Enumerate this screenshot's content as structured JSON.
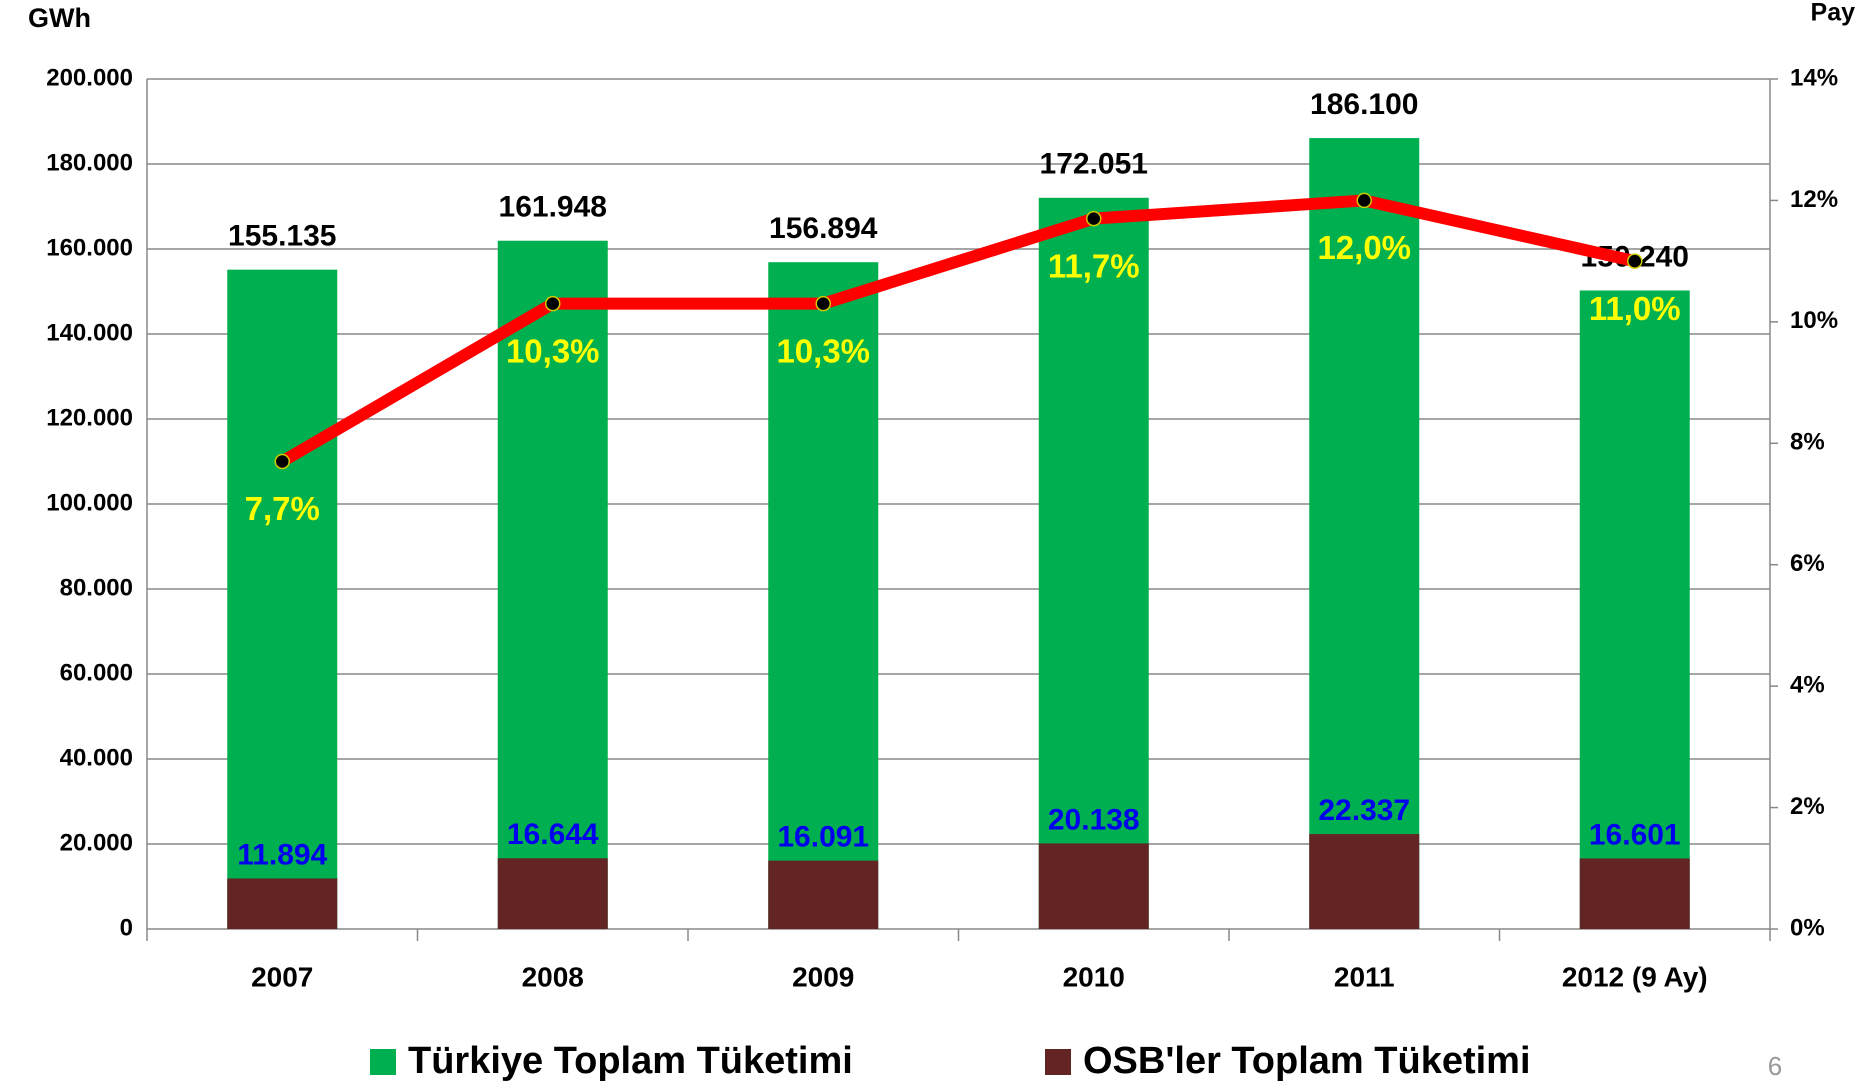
{
  "chart_data": {
    "type": "bar",
    "y_label": "GWh",
    "y2_label": "Pay",
    "categories": [
      "2007",
      "2008",
      "2009",
      "2010",
      "2011",
      "2012 (9 Ay)"
    ],
    "series": [
      {
        "name": "Türkiye Toplam Tüketimi",
        "color": "#00b050",
        "values": [
          155135,
          161948,
          156894,
          172051,
          186100,
          150240
        ],
        "value_labels": [
          "155.135",
          "161.948",
          "156.894",
          "172.051",
          "186.100",
          "150.240"
        ]
      },
      {
        "name": "OSB'ler Toplam Tüketimi",
        "color": "#632523",
        "values": [
          11894,
          16644,
          16091,
          20138,
          22337,
          16601
        ],
        "value_labels": [
          "11.894",
          "16.644",
          "16.091",
          "20.138",
          "22.337",
          "16.601"
        ]
      },
      {
        "type": "line",
        "axis": "y2",
        "color": "#ff0000",
        "values": [
          7.7,
          10.3,
          10.3,
          11.7,
          12.0,
          11.0
        ],
        "value_labels": [
          "7,7%",
          "10,3%",
          "10,3%",
          "11,7%",
          "12,0%",
          "11,0%"
        ]
      }
    ],
    "ylim": [
      0,
      200000
    ],
    "yticks": [
      {
        "value": 0,
        "label": "0"
      },
      {
        "value": 20000,
        "label": "20.000"
      },
      {
        "value": 40000,
        "label": "40.000"
      },
      {
        "value": 60000,
        "label": "60.000"
      },
      {
        "value": 80000,
        "label": "80.000"
      },
      {
        "value": 100000,
        "label": "100.000"
      },
      {
        "value": 120000,
        "label": "120.000"
      },
      {
        "value": 140000,
        "label": "140.000"
      },
      {
        "value": 160000,
        "label": "160.000"
      },
      {
        "value": 180000,
        "label": "180.000"
      },
      {
        "value": 200000,
        "label": "200.000"
      }
    ],
    "y2lim": [
      0,
      14
    ],
    "y2ticks": [
      {
        "value": 0,
        "label": "0%"
      },
      {
        "value": 2,
        "label": "2%"
      },
      {
        "value": 4,
        "label": "4%"
      },
      {
        "value": 6,
        "label": "6%"
      },
      {
        "value": 8,
        "label": "8%"
      },
      {
        "value": 10,
        "label": "10%"
      },
      {
        "value": 12,
        "label": "12%"
      },
      {
        "value": 14,
        "label": "14%"
      }
    ],
    "grid": true,
    "legend": "bottom"
  },
  "page_number": "6"
}
